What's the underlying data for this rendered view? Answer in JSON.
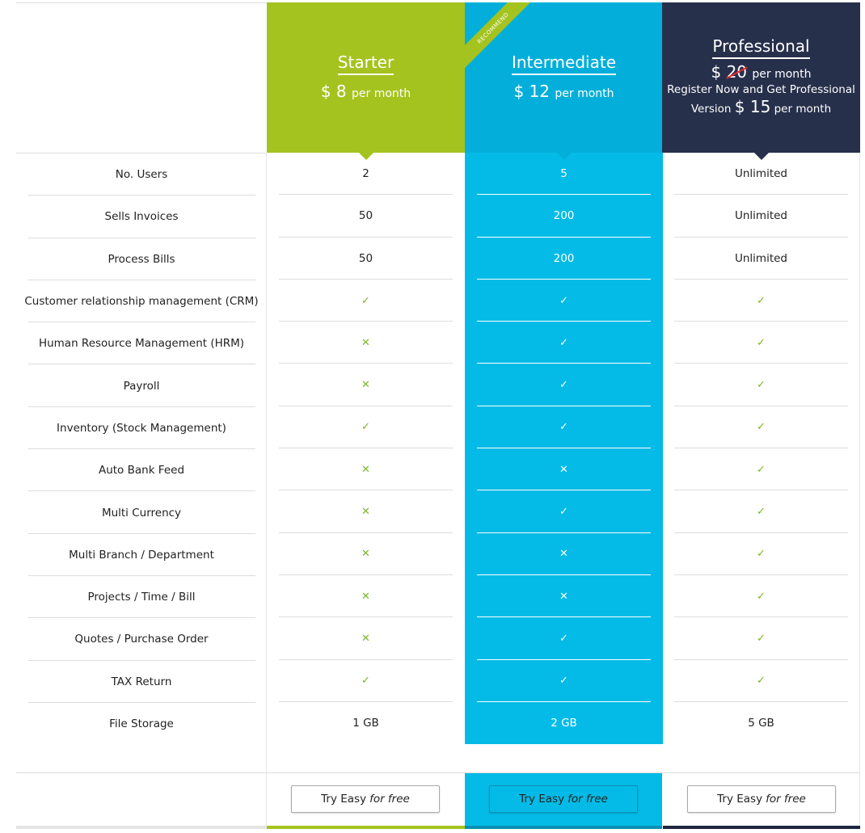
{
  "features": [
    "No. Users",
    "Sells Invoices",
    "Process Bills",
    "Customer relationship management (CRM)",
    "Human Resource Management (HRM)",
    "Payroll",
    "Inventory (Stock Management)",
    "Auto Bank Feed",
    "Multi Currency",
    "Multi Branch / Department",
    "Projects / Time / Bill",
    "Quotes / Purchase Order",
    "TAX Return",
    "File Storage"
  ],
  "plans": [
    {
      "name": "Starter",
      "currency": "$",
      "price": "8",
      "per": "per month",
      "color": "#a4c31f",
      "values": [
        "2",
        "50",
        "50",
        "✓",
        "✕",
        "✕",
        "✓",
        "✕",
        "✕",
        "✕",
        "✕",
        "✕",
        "✓",
        "1 GB"
      ],
      "button": {
        "label": "Try Easy",
        "label_em": "for free"
      }
    },
    {
      "name": "Intermediate",
      "ribbon": "RECOMMEND",
      "currency": "$",
      "price": "12",
      "per": "per month",
      "color": "#03afda",
      "values": [
        "5",
        "200",
        "200",
        "✓",
        "✓",
        "✓",
        "✓",
        "✕",
        "✓",
        "✕",
        "✕",
        "✓",
        "✓",
        "2 GB"
      ],
      "button": {
        "label": "Try Easy",
        "label_em": "for free"
      }
    },
    {
      "name": "Professional",
      "currency": "$",
      "old_price": "20",
      "per": "per month",
      "promo_line1": "Register Now and Get Professional",
      "promo_line2_prefix": "Version",
      "promo_price": "$ 15",
      "promo_per": "per month",
      "color": "#27304b",
      "values": [
        "Unlimited",
        "Unlimited",
        "Unlimited",
        "✓",
        "✓",
        "✓",
        "✓",
        "✓",
        "✓",
        "✓",
        "✓",
        "✓",
        "✓",
        "5 GB"
      ],
      "button": {
        "label": "Try Easy",
        "label_em": "for free"
      }
    }
  ]
}
